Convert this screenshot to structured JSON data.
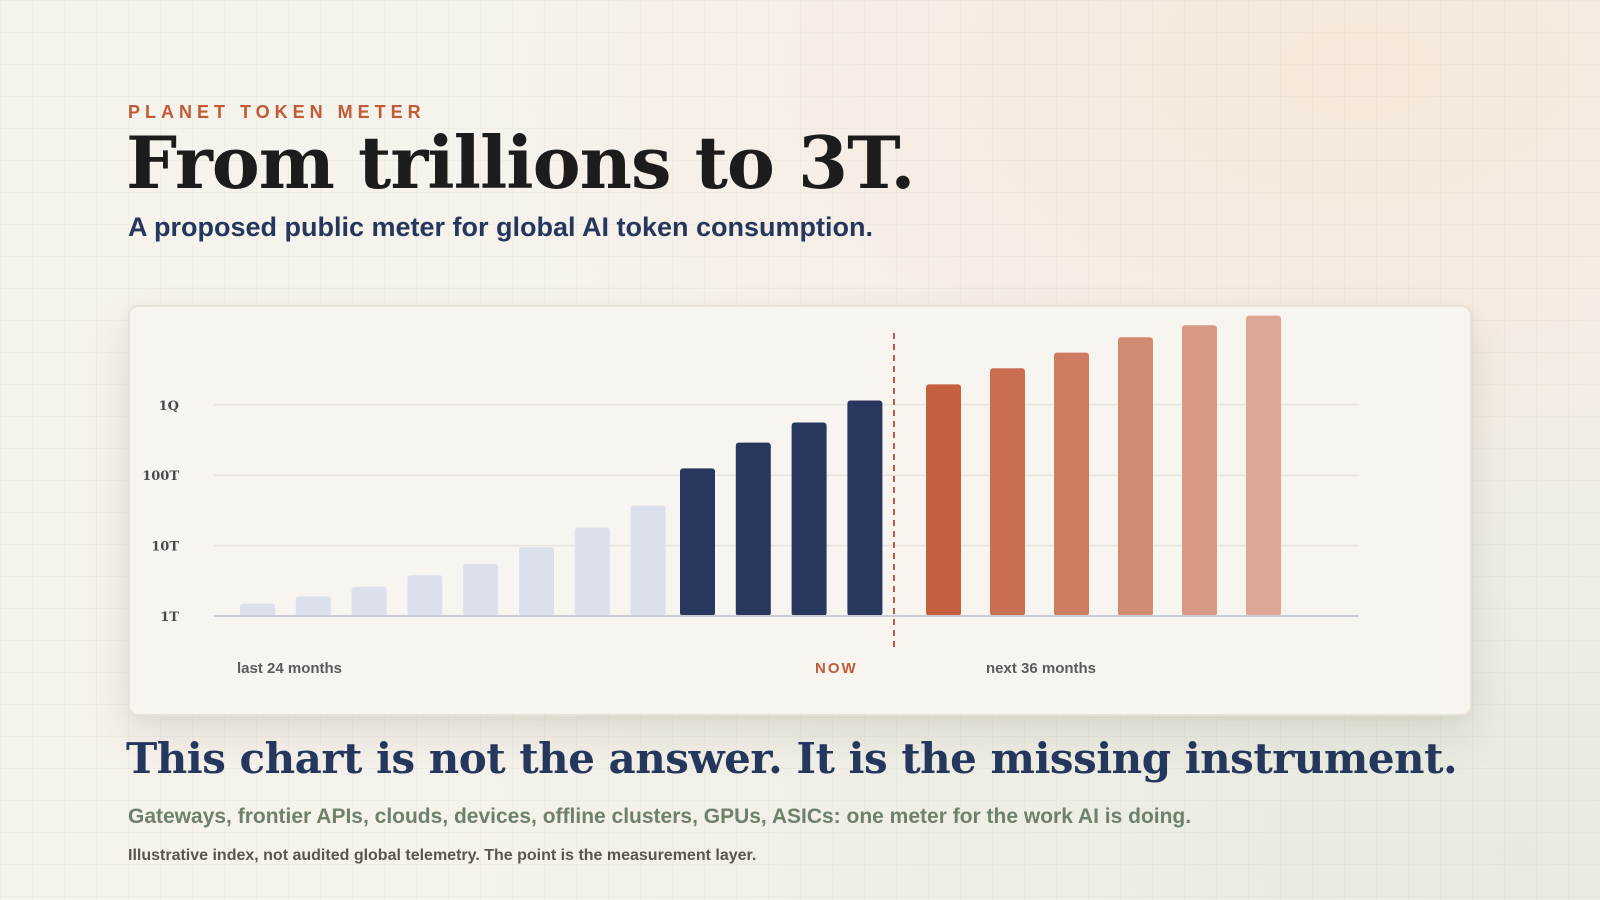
{
  "eyebrow": "PLANET TOKEN METER",
  "title": "From trillions to 3T.",
  "subtitle": "A proposed public meter for global AI token consumption.",
  "headline": "This chart is not the answer. It is the missing instrument.",
  "caption": "Gateways, frontier APIs, clouds, devices, offline clusters, GPUs, ASICs: one meter for the work AI is doing.",
  "note": "Illustrative index, not audited global telemetry. The point is the measurement layer.",
  "colors": {
    "past": "#dbe0ec",
    "recent": "#27375e",
    "forecast_start": "#c4603f",
    "forecast_end": "#dca795",
    "now_marker": "#c05a37"
  },
  "chart_data": {
    "type": "bar",
    "scale": "log",
    "y_ticks": [
      "1T",
      "10T",
      "100T",
      "1Q"
    ],
    "ylim_log10_trillions": [
      0,
      4.4
    ],
    "grid": true,
    "legend": "none",
    "labels": {
      "past": "last 24 months",
      "now": "NOW",
      "future": "next 36 months"
    },
    "series": [
      {
        "group": "past",
        "values_trillions": [
          1.5,
          1.9,
          2.6,
          3.8,
          5.5,
          9.5,
          18,
          37
        ]
      },
      {
        "group": "recent",
        "values_trillions": [
          125,
          290,
          560,
          1150
        ]
      },
      {
        "group": "forecast",
        "values_trillions": [
          1950,
          3300,
          5500,
          9100,
          13500,
          18500
        ]
      }
    ]
  }
}
